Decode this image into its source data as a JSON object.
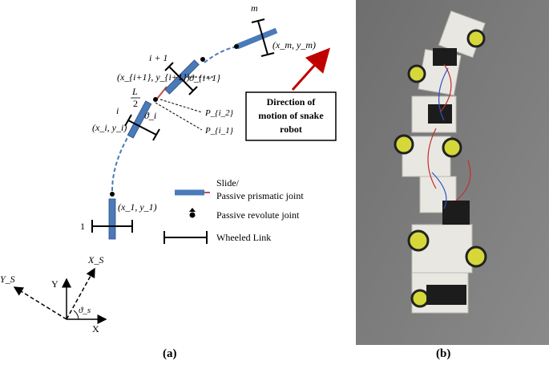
{
  "diagram": {
    "labels": {
      "m": "m",
      "xm_ym": "(x_m, y_m)",
      "i_plus_1": "i + 1",
      "xi1_yi1": "(x_{i+1}, y_{i+1})",
      "theta_i1": "ϑ_{i+1}",
      "L": "L",
      "two": "2",
      "i": "i",
      "xi_yi": "(x_i, y_i)",
      "theta_i": "ϑ_i",
      "p_i2": "P_{i_2}",
      "p_i1": "P_{i_1}",
      "x1_y1": "(x_1, y_1)",
      "one": "1",
      "axis_Y": "Y",
      "axis_X": "X",
      "axis_Ys": "Y_S",
      "axis_Xs": "X_S",
      "theta_s": "ϑ_s"
    },
    "direction_box": {
      "line1": "Direction of",
      "line2": "motion of snake",
      "line3": "robot"
    },
    "legend": {
      "slide_line1": "Slide/",
      "slide_line2": "Passive prismatic joint",
      "revolute": "Passive revolute joint",
      "wheeled": "Wheeled Link"
    },
    "colors": {
      "prismatic": "#4a7ab8",
      "joint": "#c0504d",
      "arrow": "#c00000",
      "dashed": "#4a7ab8"
    }
  },
  "captions": {
    "a": "(a)",
    "b": "(b)"
  },
  "photo": {
    "subject": "snake-robot-photo"
  }
}
